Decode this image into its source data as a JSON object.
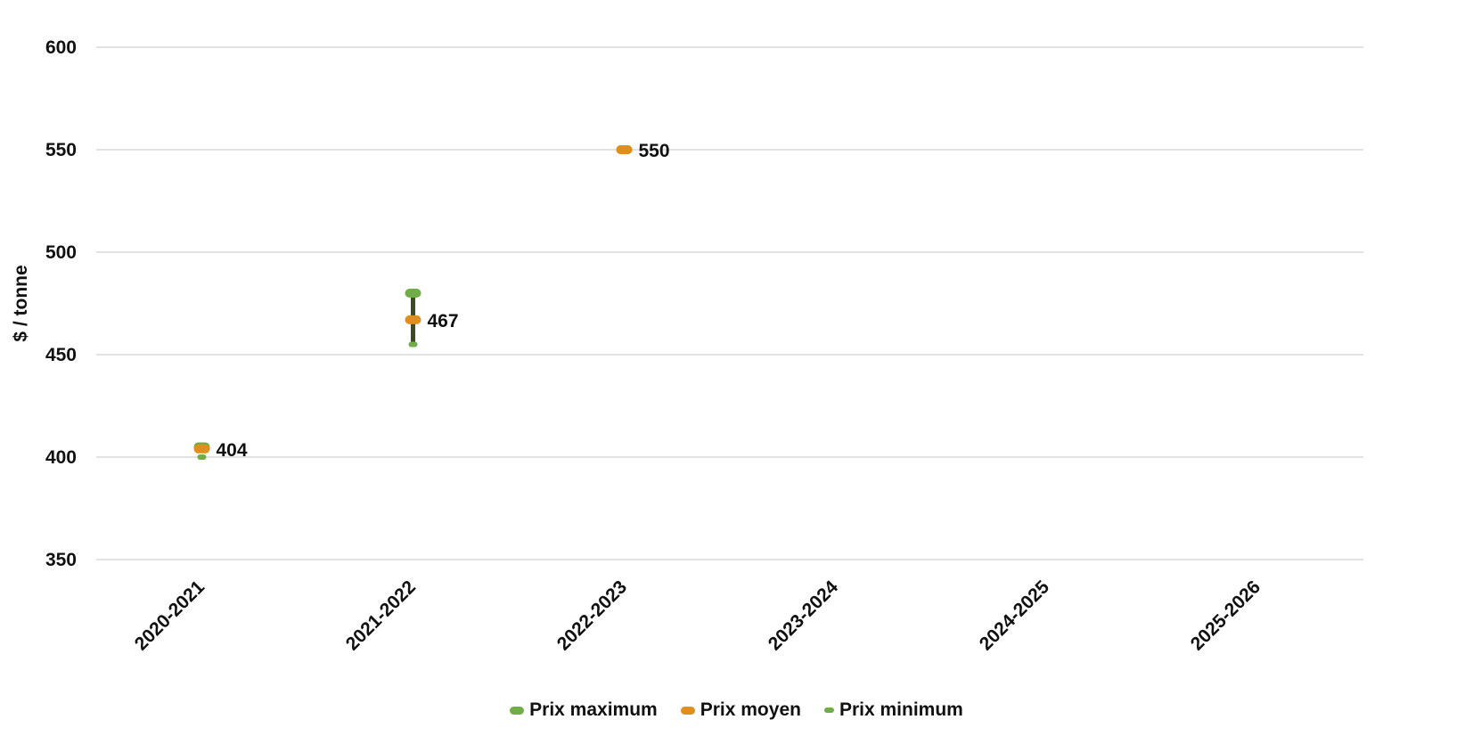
{
  "chart_data": {
    "type": "line",
    "categories": [
      "2020-2021",
      "2021-2022",
      "2022-2023",
      "2023-2024",
      "2024-2025",
      "2025-2026"
    ],
    "series": [
      {
        "name": "Prix maximum",
        "values": [
          405,
          480,
          550,
          null,
          null,
          null
        ],
        "color": "#70AD47"
      },
      {
        "name": "Prix moyen",
        "values": [
          404,
          467,
          550,
          null,
          null,
          null
        ],
        "color": "#E08E1E"
      },
      {
        "name": "Prix minimum",
        "values": [
          400,
          455,
          550,
          null,
          null,
          null
        ],
        "color": "#70AD47"
      }
    ],
    "data_labels": [
      "404",
      "467",
      "550",
      "",
      "",
      ""
    ],
    "range_bar_color": "#3D4A24",
    "ylabel": "$ / tonne",
    "xlabel": "",
    "ylim": [
      350,
      600
    ],
    "yticks": [
      "350",
      "400",
      "450",
      "500",
      "550",
      "600"
    ],
    "grid": true,
    "legend": "bottom"
  }
}
